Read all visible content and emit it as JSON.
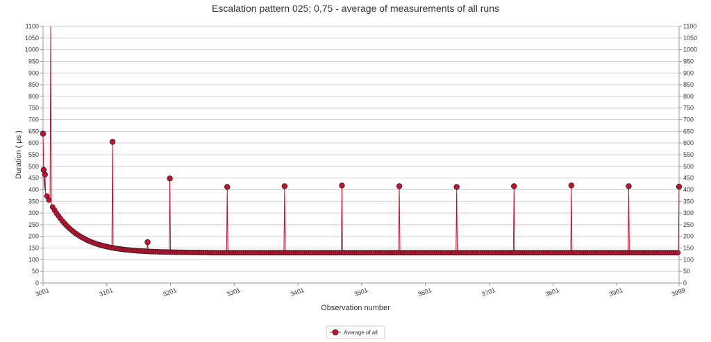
{
  "chart_data": {
    "type": "line",
    "title": "Escalation pattern 025; 0,75 - average of measurements of all runs",
    "xlabel": "Observation number",
    "ylabel": "Duration ( µs )",
    "xlim": [
      3001,
      3999
    ],
    "ylim": [
      0,
      1100
    ],
    "y_ticks": [
      "0",
      "50",
      "100",
      "150",
      "200",
      "250",
      "300",
      "350",
      "400",
      "450",
      "500",
      "550",
      "600",
      "650",
      "700",
      "750",
      "800",
      "850",
      "900",
      "950",
      "1000",
      "1050",
      "1100"
    ],
    "x_ticks": [
      "3001",
      "3101",
      "3201",
      "3301",
      "3401",
      "3501",
      "3601",
      "3701",
      "3801",
      "3901",
      "3999"
    ],
    "grid": true,
    "legend_position": "bottom-center",
    "series": [
      {
        "name": "Average of all",
        "color": "#c8102e",
        "marker": "circle",
        "decay": {
          "start": 3001,
          "end": 3260,
          "initial": 410,
          "floor": 130,
          "tau": 42
        },
        "baseline_after": 130,
        "spikes": [
          {
            "x": 3001,
            "y": 640
          },
          {
            "x": 3002,
            "y": 485
          },
          {
            "x": 3004,
            "y": 465
          },
          {
            "x": 3013,
            "y": 1100
          },
          {
            "x": 3110,
            "y": 605
          },
          {
            "x": 3165,
            "y": 175
          },
          {
            "x": 3200,
            "y": 448
          },
          {
            "x": 3290,
            "y": 412
          },
          {
            "x": 3380,
            "y": 415
          },
          {
            "x": 3470,
            "y": 418
          },
          {
            "x": 3560,
            "y": 415
          },
          {
            "x": 3650,
            "y": 412
          },
          {
            "x": 3740,
            "y": 415
          },
          {
            "x": 3830,
            "y": 418
          },
          {
            "x": 3920,
            "y": 415
          },
          {
            "x": 3999,
            "y": 413
          }
        ]
      }
    ]
  },
  "legend": {
    "label": "Average of all"
  }
}
